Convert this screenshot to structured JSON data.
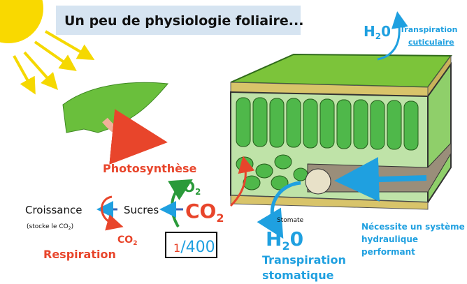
{
  "title": "Un peu de physiologie foliaire...",
  "h2o_top": {
    "main": "H",
    "sub": "2",
    "rest": "0"
  },
  "transpiration_cuticulaire": [
    "Transpiration",
    "cuticulaire"
  ],
  "photosynthese": "Photosynthèse",
  "o2": {
    "main": "O",
    "sub": "2"
  },
  "co2_main": {
    "main": "CO",
    "sub": "2"
  },
  "sucres": "Sucres",
  "croissance": "Croissance",
  "stocke": {
    "main": "(stocke le CO",
    "sub": "2",
    "rest": ")"
  },
  "co2_small": {
    "main": "CO",
    "sub": "2"
  },
  "respiration": "Respiration",
  "stomate": "Stomate",
  "counter": {
    "current": "1",
    "separator": "/",
    "total": "400"
  },
  "h2o_bottom": {
    "main": "H",
    "sub": "2",
    "rest": "0"
  },
  "transpiration_stomatique": [
    "Transpiration",
    "stomatique"
  ],
  "necessite": [
    "Nécessite un système",
    "hydraulique",
    "performant"
  ]
}
